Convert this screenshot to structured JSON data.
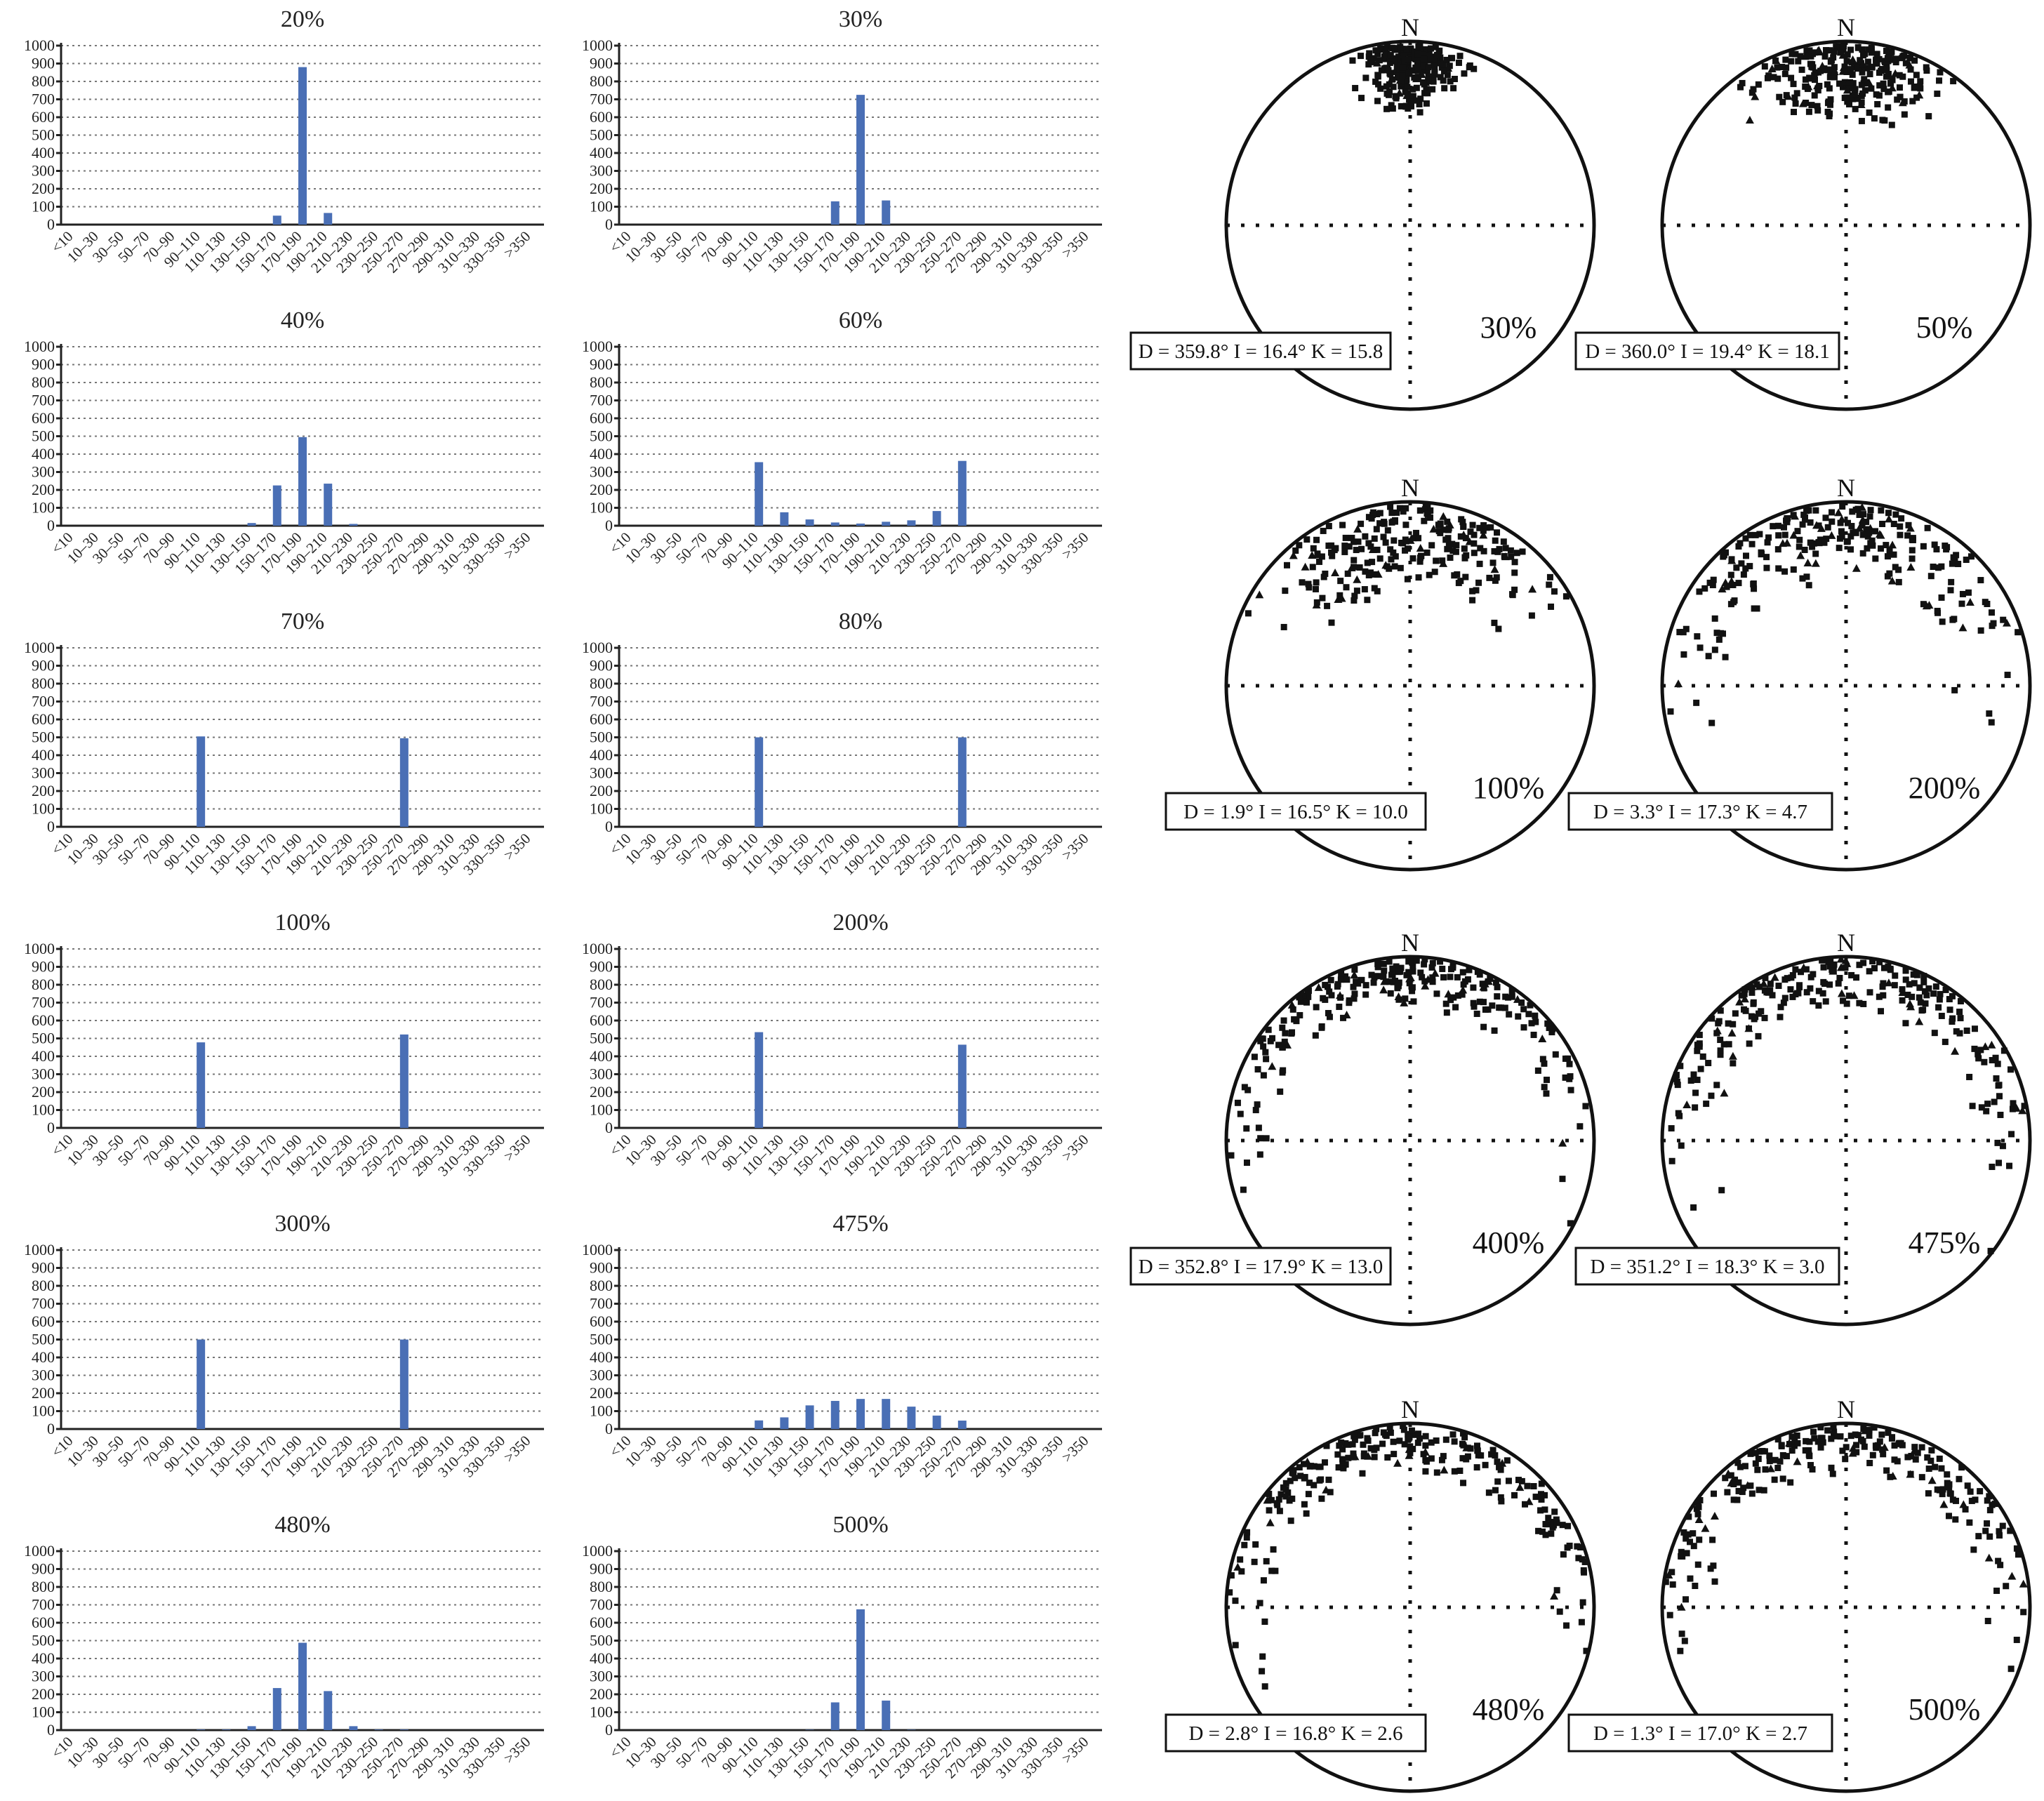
{
  "chart_data": {
    "histograms": [
      {
        "type": "bar",
        "title": "20%",
        "values": [
          0,
          0,
          0,
          0,
          0,
          0,
          0,
          0,
          50,
          880,
          65,
          0,
          0,
          0,
          0,
          0,
          0,
          0,
          0
        ]
      },
      {
        "type": "bar",
        "title": "30%",
        "values": [
          0,
          0,
          0,
          0,
          0,
          0,
          0,
          0,
          130,
          725,
          135,
          0,
          0,
          0,
          0,
          0,
          0,
          0,
          0
        ]
      },
      {
        "type": "bar",
        "title": "40%",
        "values": [
          0,
          0,
          0,
          0,
          0,
          0,
          0,
          15,
          225,
          495,
          235,
          10,
          0,
          0,
          0,
          0,
          0,
          0,
          0
        ]
      },
      {
        "type": "bar",
        "title": "60%",
        "values": [
          0,
          0,
          0,
          0,
          0,
          355,
          75,
          35,
          18,
          12,
          22,
          30,
          82,
          362,
          0,
          0,
          0,
          0,
          0
        ]
      },
      {
        "type": "bar",
        "title": "70%",
        "values": [
          0,
          0,
          0,
          0,
          0,
          505,
          0,
          0,
          0,
          0,
          0,
          0,
          0,
          495,
          0,
          0,
          0,
          0,
          0
        ]
      },
      {
        "type": "bar",
        "title": "80%",
        "values": [
          0,
          0,
          0,
          0,
          0,
          500,
          0,
          0,
          0,
          0,
          0,
          0,
          0,
          500,
          0,
          0,
          0,
          0,
          0
        ]
      },
      {
        "type": "bar",
        "title": "100%",
        "values": [
          0,
          0,
          0,
          0,
          0,
          478,
          0,
          0,
          0,
          0,
          0,
          0,
          0,
          522,
          0,
          0,
          0,
          0,
          0
        ]
      },
      {
        "type": "bar",
        "title": "200%",
        "values": [
          0,
          0,
          0,
          0,
          0,
          535,
          0,
          0,
          0,
          0,
          0,
          0,
          0,
          465,
          0,
          0,
          0,
          0,
          0
        ]
      },
      {
        "type": "bar",
        "title": "300%",
        "values": [
          0,
          0,
          0,
          0,
          0,
          500,
          0,
          0,
          0,
          0,
          0,
          0,
          0,
          500,
          0,
          0,
          0,
          0,
          0
        ]
      },
      {
        "type": "bar",
        "title": "475%",
        "values": [
          0,
          0,
          0,
          0,
          0,
          48,
          65,
          132,
          157,
          168,
          168,
          125,
          75,
          47,
          0,
          0,
          0,
          0,
          0
        ]
      },
      {
        "type": "bar",
        "title": "480%",
        "values": [
          0,
          0,
          0,
          0,
          0,
          3,
          3,
          22,
          235,
          488,
          218,
          22,
          3,
          3,
          0,
          0,
          0,
          0,
          0
        ]
      },
      {
        "type": "bar",
        "title": "500%",
        "values": [
          0,
          0,
          0,
          0,
          0,
          0,
          0,
          2,
          155,
          675,
          165,
          2,
          0,
          0,
          0,
          0,
          0,
          0,
          0
        ]
      }
    ],
    "categories": [
      "<10",
      "10–30",
      "30–50",
      "50–70",
      "70–90",
      "90–110",
      "110–130",
      "130–150",
      "150–170",
      "170–190",
      "190–210",
      "210–230",
      "230–250",
      "250–270",
      "270–290",
      "290–310",
      "310–330",
      "330–350",
      ">350"
    ],
    "yticks": [
      "0",
      "100",
      "200",
      "300",
      "400",
      "500",
      "600",
      "700",
      "800",
      "900",
      "1000"
    ],
    "ylim": [
      0,
      1000
    ],
    "grid": true,
    "stereonets": [
      {
        "type": "scatter",
        "north": "N",
        "label": "30%",
        "stats": "D = 359.8°  I = 16.4°  K = 15.8"
      },
      {
        "type": "scatter",
        "north": "N",
        "label": "50%",
        "stats": "D = 360.0°  I = 19.4°  K = 18.1"
      },
      {
        "type": "scatter",
        "north": "N",
        "label": "100%",
        "stats": "D = 1.9°  I = 16.5°  K = 10.0"
      },
      {
        "type": "scatter",
        "north": "N",
        "label": "200%",
        "stats": "D = 3.3°  I = 17.3°  K = 4.7"
      },
      {
        "type": "scatter",
        "north": "N",
        "label": "400%",
        "stats": "D = 352.8°  I = 17.9°  K = 13.0"
      },
      {
        "type": "scatter",
        "north": "N",
        "label": "475%",
        "stats": "D = 351.2°  I = 18.3°  K = 3.0"
      },
      {
        "type": "scatter",
        "north": "N",
        "label": "480%",
        "stats": "D = 2.8°  I = 16.8°  K = 2.6"
      },
      {
        "type": "scatter",
        "north": "N",
        "label": "500%",
        "stats": "D = 1.3°  I = 17.0°  K = 2.7"
      }
    ],
    "colors": {
      "bar": "#4a6fb5",
      "point": "#111111"
    }
  }
}
